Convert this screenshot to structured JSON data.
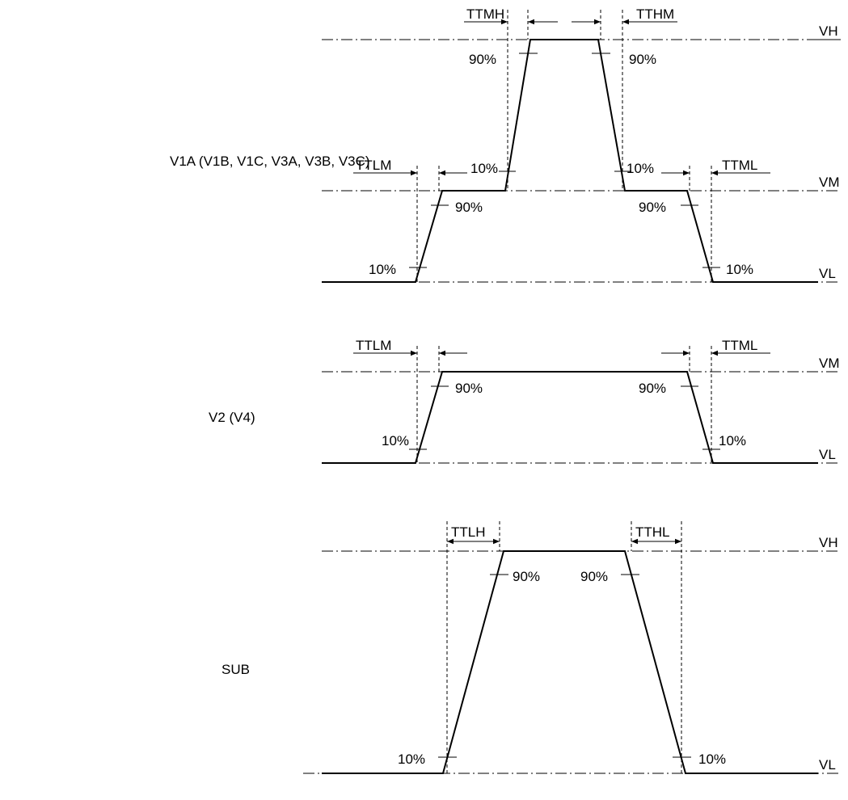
{
  "signal_labels": {
    "v1a": "V1A (V1B, V1C, V3A, V3B, V3C)",
    "v2": "V2 (V4)",
    "sub": "SUB"
  },
  "level_labels": {
    "vh": "VH",
    "vm": "VM",
    "vl": "VL"
  },
  "percent_labels": {
    "p90": "90%",
    "p10": "10%"
  },
  "timing_labels": {
    "ttmh": "TTMH",
    "tthm": "TTHM",
    "ttlm": "TTLM",
    "ttml": "TTML",
    "ttlh": "TTLH",
    "tthl": "TTHL"
  }
}
